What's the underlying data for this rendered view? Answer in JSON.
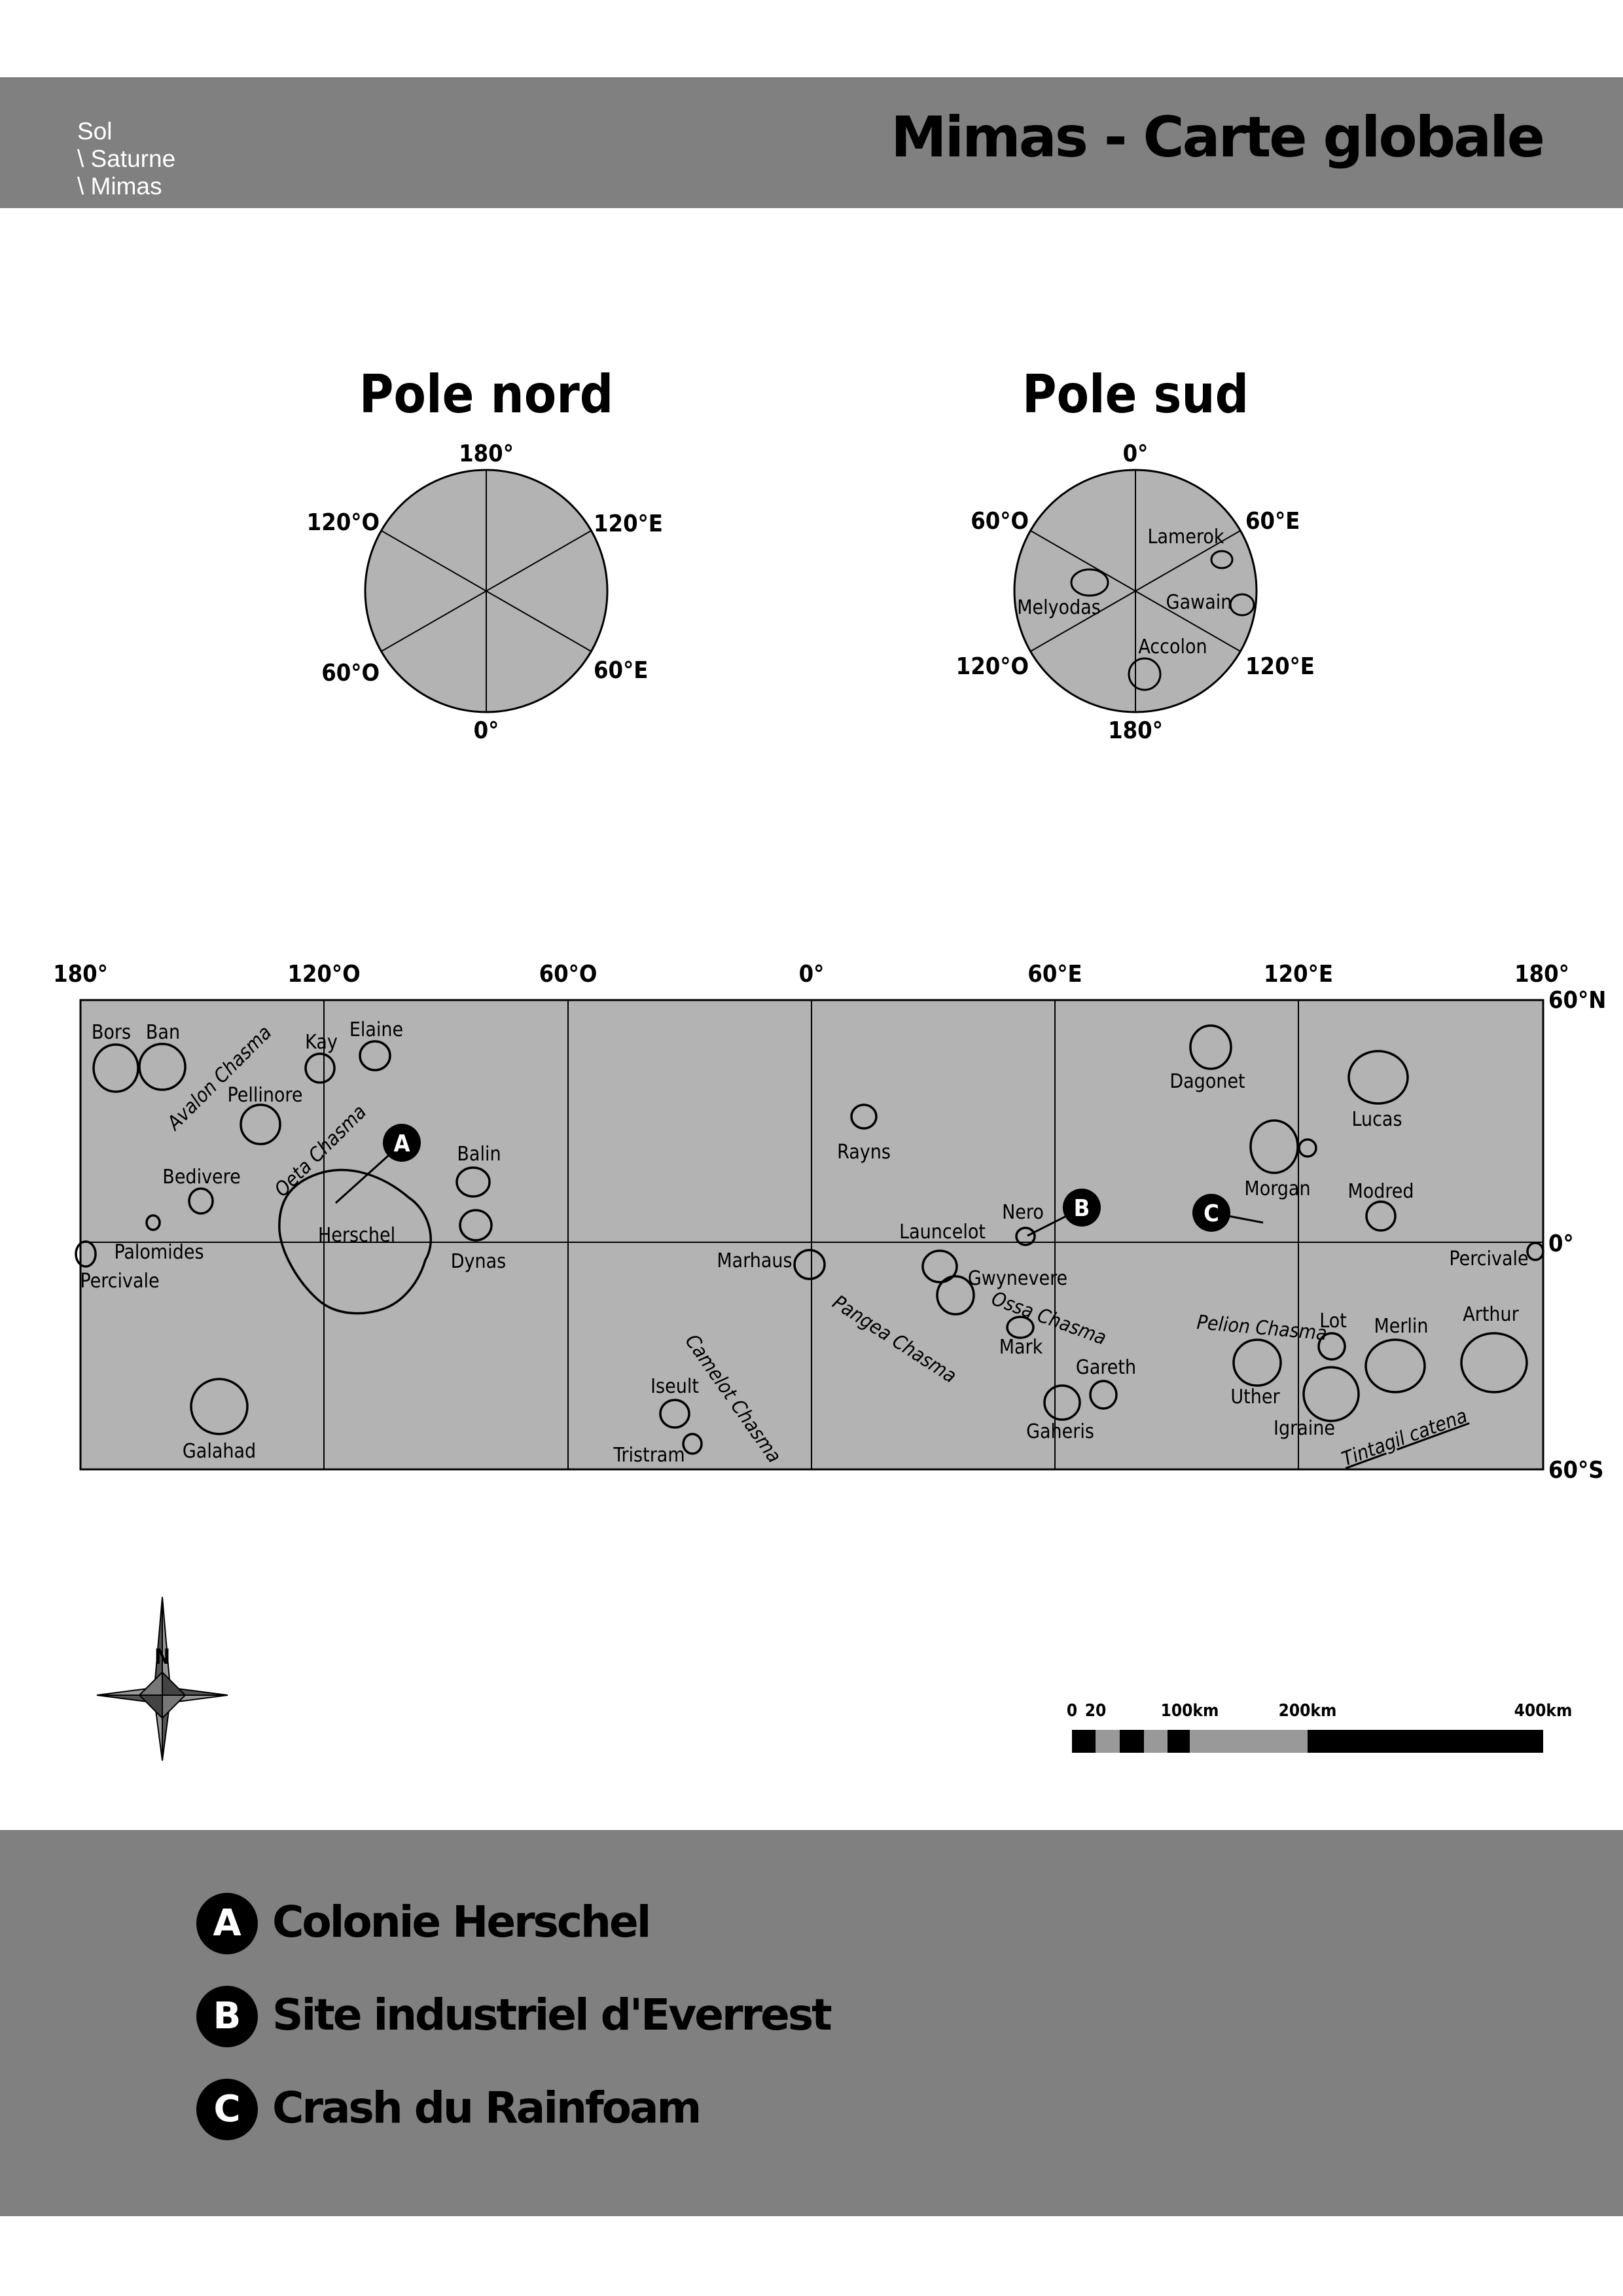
{
  "header": {
    "breadcrumb": [
      "Sol",
      "\\ Saturne",
      "\\ Mimas"
    ],
    "title": "Mimas - Carte globale"
  },
  "colors": {
    "band": "#808080",
    "map_fill": "#b3b3b3",
    "ink": "#000000"
  },
  "poles": {
    "north": {
      "title": "Pole nord",
      "labels": [
        "180°",
        "120°E",
        "60°E",
        "0°",
        "60°O",
        "120°O"
      ]
    },
    "south": {
      "title": "Pole sud",
      "labels": [
        "0°",
        "60°E",
        "120°E",
        "180°",
        "120°O",
        "60°O"
      ],
      "craters": [
        "Lamerok",
        "Melyodas",
        "Gawain",
        "Accolon"
      ]
    }
  },
  "main_map": {
    "top_labels": [
      "180°",
      "120°O",
      "60°O",
      "0°",
      "60°E",
      "120°E",
      "180°"
    ],
    "right_labels": [
      "60°N",
      "0°",
      "60°S"
    ],
    "features": [
      "Bors",
      "Ban",
      "Kay",
      "Elaine",
      "Avalon Chasma",
      "Pellinore",
      "Oeta Chasma",
      "Bedivere",
      "Balin",
      "Herschel",
      "Palomides",
      "Percivale",
      "Dynas",
      "Galahad",
      "Rayns",
      "Marhaus",
      "Launcelot",
      "Nero",
      "Pangea Chasma",
      "Gwynevere",
      "Ossa Chasma",
      "Mark",
      "Camelot Chasma",
      "Iseult",
      "Tristram",
      "Gareth",
      "Gaheris",
      "Dagonet",
      "Lucas",
      "Morgan",
      "Modred",
      "Percivale",
      "Pelion Chasma",
      "Lot",
      "Merlin",
      "Arthur",
      "Uther",
      "Igraine",
      "Tintagil catena"
    ],
    "markers": [
      "A",
      "B",
      "C"
    ]
  },
  "compass": {
    "label": "N"
  },
  "scale_bar": {
    "labels": [
      "0",
      "20",
      "100km",
      "200km",
      "400km"
    ]
  },
  "legend": [
    {
      "key": "A",
      "label": "Colonie Herschel"
    },
    {
      "key": "B",
      "label": "Site industriel d'Everrest"
    },
    {
      "key": "C",
      "label": "Crash du Rainfoam"
    }
  ]
}
